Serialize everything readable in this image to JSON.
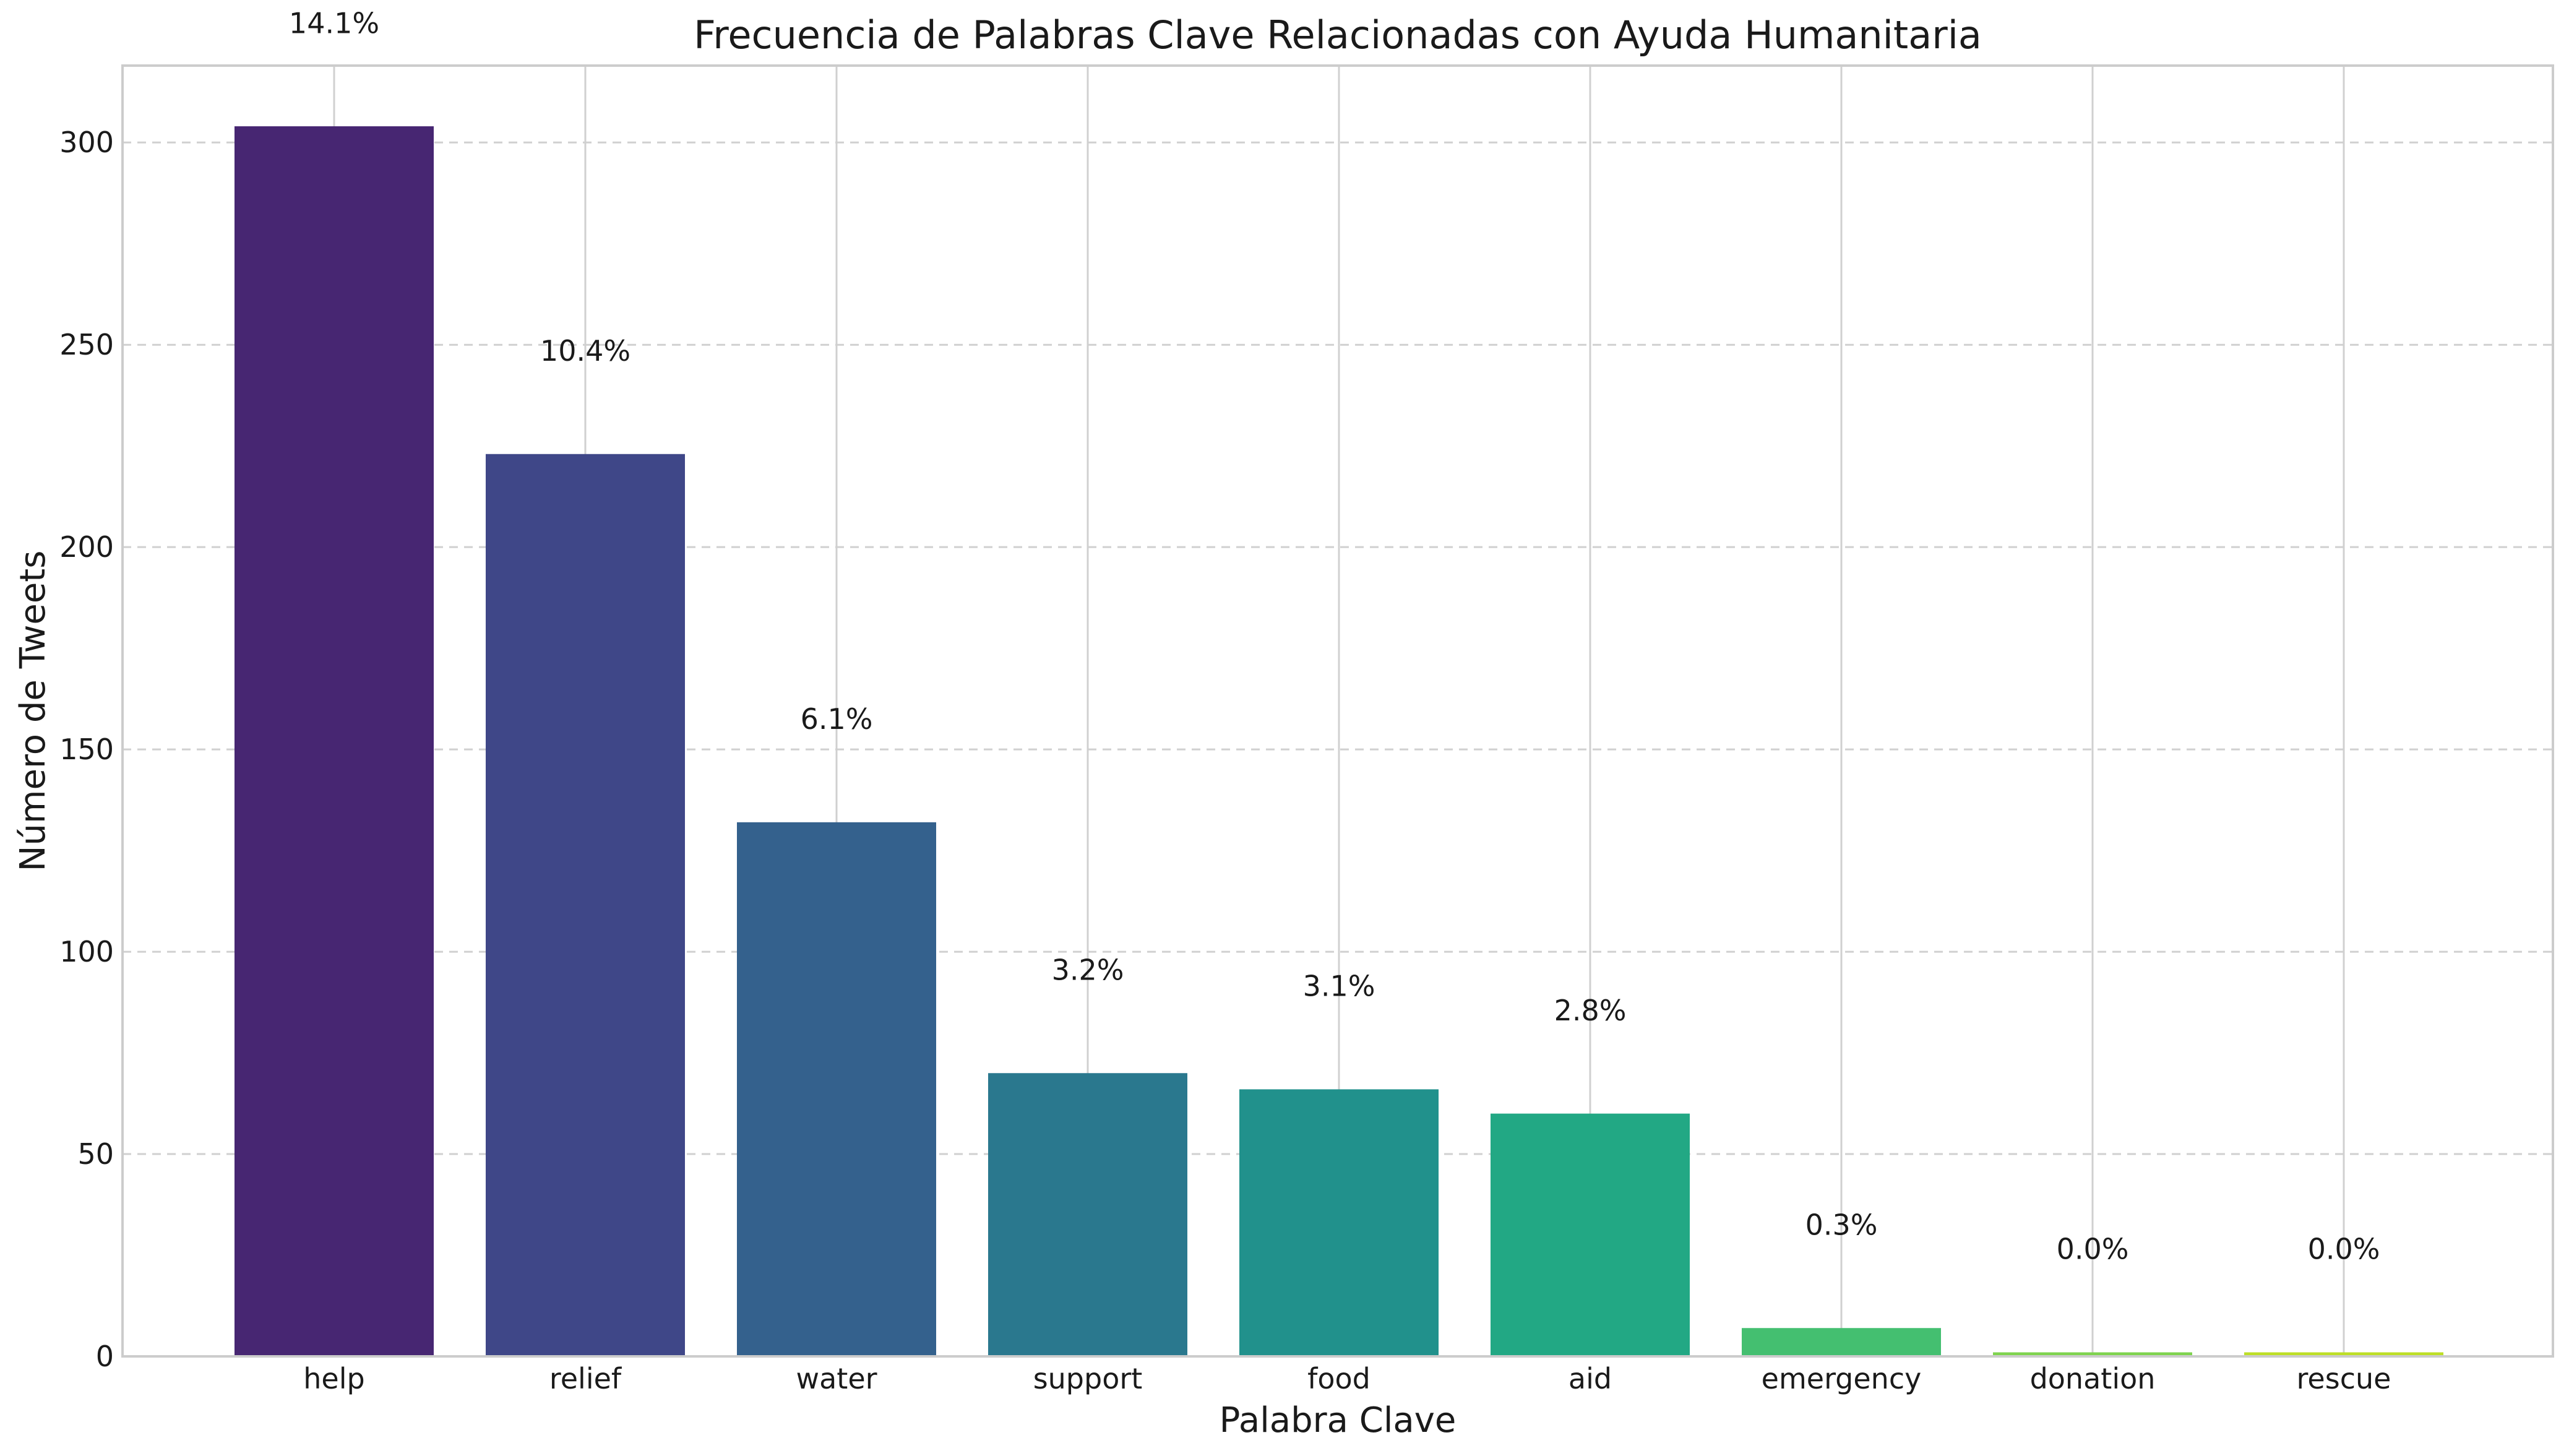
{
  "chart_data": {
    "type": "bar",
    "title": "Frecuencia de Palabras Clave Relacionadas con Ayuda Humanitaria",
    "xlabel": "Palabra Clave",
    "ylabel": "Número de Tweets",
    "categories": [
      "help",
      "relief",
      "water",
      "support",
      "food",
      "aid",
      "emergency",
      "donation",
      "rescue"
    ],
    "values": [
      304,
      223,
      132,
      70,
      66,
      60,
      7,
      1,
      1
    ],
    "percent_labels": [
      "14.1%",
      "10.4%",
      "6.1%",
      "3.2%",
      "3.1%",
      "2.8%",
      "0.3%",
      "0.0%",
      "0.0%"
    ],
    "ylim": [
      0,
      319
    ],
    "yticks": [
      0,
      50,
      100,
      150,
      200,
      250,
      300
    ],
    "grid": {
      "horizontal": "dashed",
      "vertical": true
    },
    "colors": [
      "#472672",
      "#3f4788",
      "#34618d",
      "#2a788e",
      "#21918c",
      "#22a884",
      "#44bf70",
      "#7fd34e",
      "#bddf26"
    ]
  }
}
